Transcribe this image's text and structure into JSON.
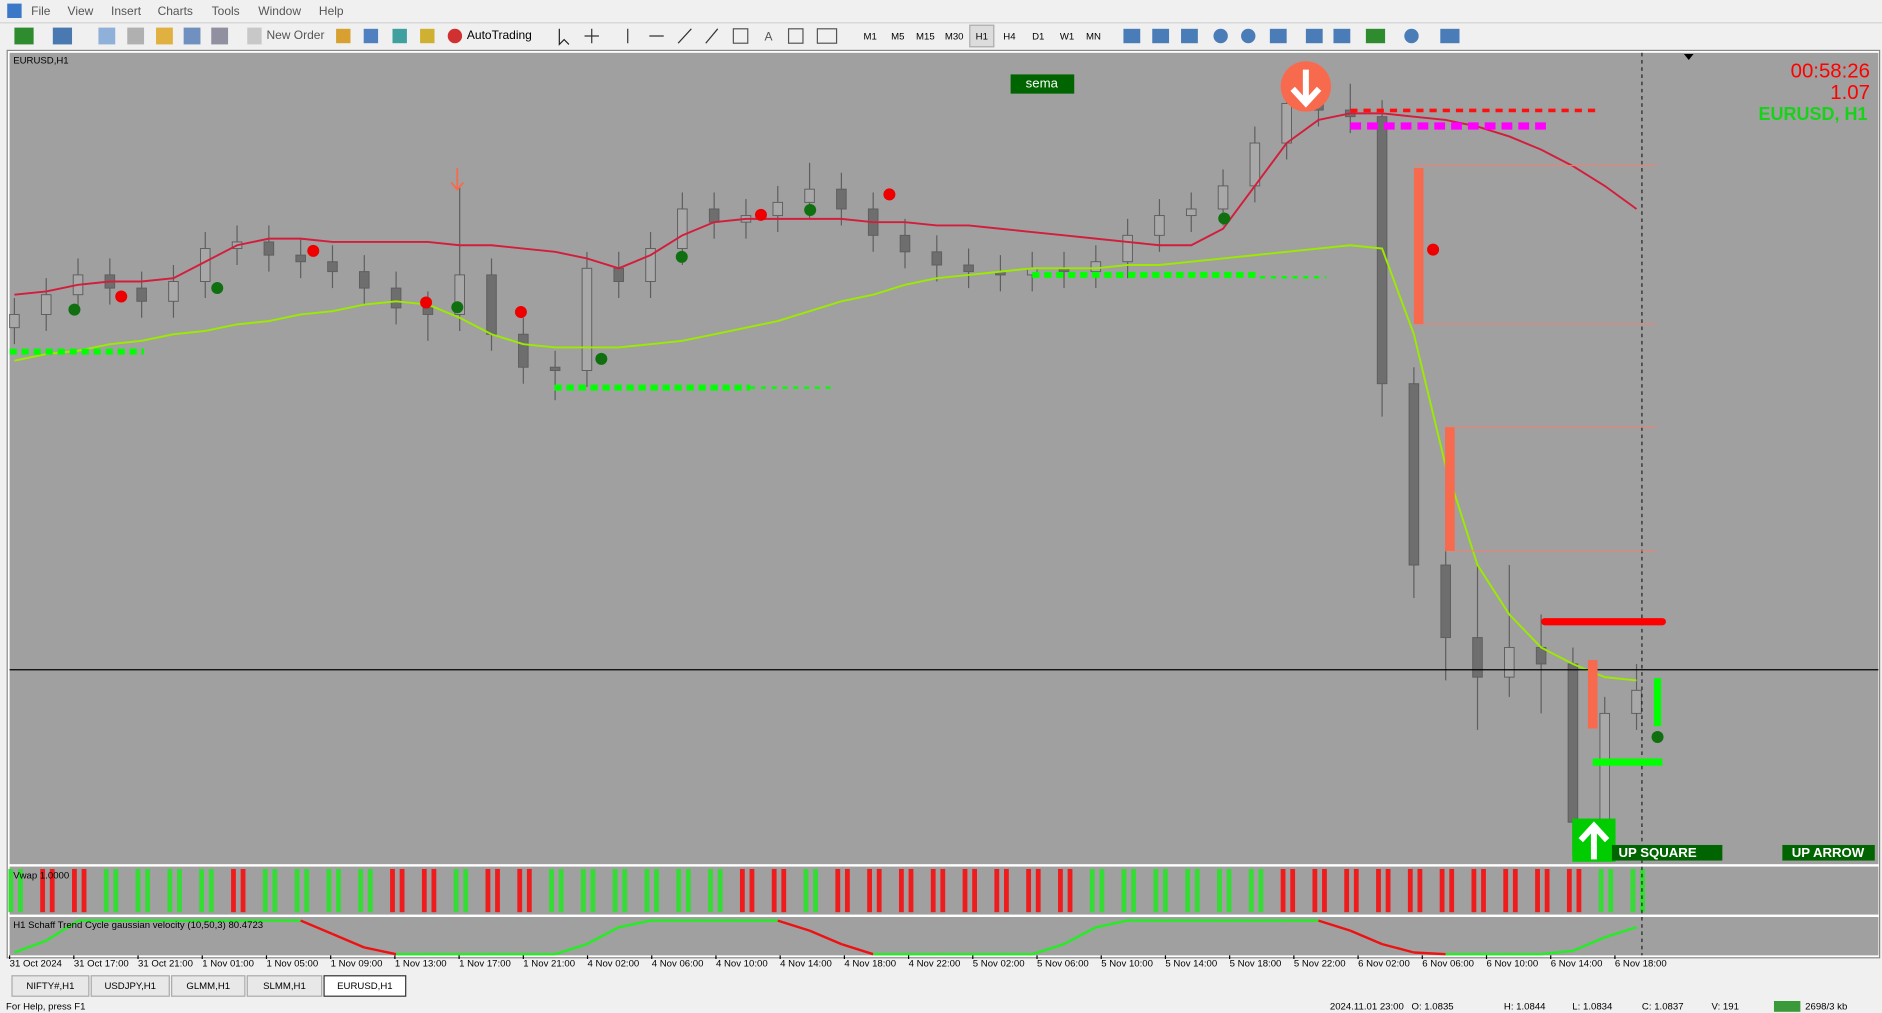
{
  "menu": [
    "File",
    "View",
    "Insert",
    "Charts",
    "Tools",
    "Window",
    "Help"
  ],
  "toolbar": {
    "new_order": "New Order",
    "auto_trading": "AutoTrading",
    "timeframes": [
      "M1",
      "M5",
      "M15",
      "M30",
      "H1",
      "H4",
      "D1",
      "W1",
      "MN"
    ]
  },
  "chart": {
    "type": "candlestick",
    "symbol_label": "EURUSD,H1",
    "sema_label": "sema",
    "countdown": "00:58:26",
    "price_label": "1.07",
    "symbol_watermark": "EURUSD, H1",
    "up_square_label": "UP SQUARE",
    "up_arrow_label": "UP ARROW",
    "ylim": [
      1.07,
      1.0945
    ],
    "x_labels": [
      "31 Oct 2024",
      "31 Oct 17:00",
      "31 Oct 21:00",
      "1 Nov 01:00",
      "1 Nov 05:00",
      "1 Nov 09:00",
      "1 Nov 13:00",
      "1 Nov 17:00",
      "1 Nov 21:00",
      "4 Nov 02:00",
      "4 Nov 06:00",
      "4 Nov 10:00",
      "4 Nov 14:00",
      "4 Nov 18:00",
      "4 Nov 22:00",
      "5 Nov 02:00",
      "5 Nov 06:00",
      "5 Nov 10:00",
      "5 Nov 14:00",
      "5 Nov 18:00",
      "5 Nov 22:00",
      "6 Nov 02:00",
      "6 Nov 06:00",
      "6 Nov 10:00",
      "6 Nov 14:00",
      "6 Nov 18:00"
    ],
    "candles": {
      "open": [
        1.0862,
        1.0866,
        1.0872,
        1.0878,
        1.0874,
        1.087,
        1.0876,
        1.0886,
        1.0888,
        1.0884,
        1.0882,
        1.0879,
        1.0874,
        1.0868,
        1.0866,
        1.0878,
        1.086,
        1.085,
        1.0849,
        1.088,
        1.0876,
        1.0886,
        1.0898,
        1.0894,
        1.0896,
        1.09,
        1.0904,
        1.0898,
        1.089,
        1.0885,
        1.0881,
        1.0879,
        1.0878,
        1.088,
        1.0879,
        1.0882,
        1.089,
        1.0896,
        1.0898,
        1.0905,
        1.0918,
        1.093,
        1.0928,
        1.0926,
        1.0845,
        1.079,
        1.0768,
        1.0756,
        1.0765,
        1.076,
        1.0712,
        1.0745
      ],
      "high": [
        1.0871,
        1.0877,
        1.0883,
        1.0883,
        1.0879,
        1.0881,
        1.0891,
        1.0893,
        1.0893,
        1.0889,
        1.0887,
        1.0884,
        1.0879,
        1.0873,
        1.0905,
        1.0883,
        1.0865,
        1.0855,
        1.0885,
        1.0885,
        1.0891,
        1.0903,
        1.0903,
        1.0901,
        1.0905,
        1.0912,
        1.0909,
        1.0903,
        1.0895,
        1.089,
        1.0886,
        1.0884,
        1.0885,
        1.0885,
        1.0887,
        1.0895,
        1.0901,
        1.0903,
        1.091,
        1.0923,
        1.0935,
        1.0937,
        1.0936,
        1.0931,
        1.085,
        1.0795,
        1.079,
        1.079,
        1.0775,
        1.0765,
        1.075,
        1.076
      ],
      "low": [
        1.0857,
        1.0861,
        1.0867,
        1.0869,
        1.0865,
        1.0865,
        1.0871,
        1.0881,
        1.0879,
        1.0877,
        1.0874,
        1.0869,
        1.0863,
        1.0858,
        1.0861,
        1.0855,
        1.0845,
        1.084,
        1.0844,
        1.0871,
        1.0871,
        1.0881,
        1.0889,
        1.0889,
        1.0891,
        1.0895,
        1.0893,
        1.0885,
        1.088,
        1.0876,
        1.0874,
        1.0873,
        1.0873,
        1.0874,
        1.0874,
        1.0877,
        1.0885,
        1.0891,
        1.0893,
        1.09,
        1.0913,
        1.0923,
        1.0921,
        1.0835,
        1.078,
        1.0755,
        1.074,
        1.075,
        1.0745,
        1.0702,
        1.0702,
        1.074
      ],
      "close": [
        1.0866,
        1.0872,
        1.0878,
        1.0874,
        1.087,
        1.0876,
        1.0886,
        1.0888,
        1.0884,
        1.0882,
        1.0879,
        1.0874,
        1.0868,
        1.0866,
        1.0878,
        1.086,
        1.085,
        1.0849,
        1.088,
        1.0876,
        1.0886,
        1.0898,
        1.0894,
        1.0896,
        1.09,
        1.0904,
        1.0898,
        1.089,
        1.0885,
        1.0881,
        1.0879,
        1.0878,
        1.088,
        1.0879,
        1.0882,
        1.089,
        1.0896,
        1.0898,
        1.0905,
        1.0918,
        1.093,
        1.0928,
        1.0926,
        1.0845,
        1.079,
        1.0768,
        1.0756,
        1.0765,
        1.076,
        1.0712,
        1.0745,
        1.0752
      ]
    },
    "ma_red": {
      "color": "#d21e3c",
      "values": [
        1.0872,
        1.0873,
        1.0875,
        1.0876,
        1.0876,
        1.0877,
        1.0882,
        1.0887,
        1.0889,
        1.0889,
        1.0888,
        1.0888,
        1.0888,
        1.0888,
        1.0887,
        1.0887,
        1.0886,
        1.0885,
        1.0883,
        1.088,
        1.0884,
        1.089,
        1.0894,
        1.0895,
        1.0895,
        1.0895,
        1.0895,
        1.0894,
        1.0894,
        1.0893,
        1.0893,
        1.0892,
        1.0891,
        1.089,
        1.0889,
        1.0888,
        1.0887,
        1.0887,
        1.0892,
        1.0905,
        1.0918,
        1.0925,
        1.0927,
        1.0927,
        1.0926,
        1.0925,
        1.0923,
        1.092,
        1.0916,
        1.0911,
        1.0905,
        1.0898
      ]
    },
    "ma_green": {
      "color": "#9bea00",
      "values": [
        1.0852,
        1.0854,
        1.0855,
        1.0857,
        1.0858,
        1.086,
        1.0861,
        1.0863,
        1.0864,
        1.0866,
        1.0867,
        1.0869,
        1.087,
        1.0869,
        1.0865,
        1.086,
        1.0857,
        1.0856,
        1.0856,
        1.0856,
        1.0857,
        1.0858,
        1.086,
        1.0862,
        1.0864,
        1.0867,
        1.087,
        1.0872,
        1.0875,
        1.0877,
        1.0878,
        1.0879,
        1.088,
        1.088,
        1.088,
        1.0881,
        1.0881,
        1.0882,
        1.0883,
        1.0884,
        1.0885,
        1.0886,
        1.0887,
        1.0886,
        1.086,
        1.082,
        1.079,
        1.0775,
        1.0765,
        1.076,
        1.0756,
        1.0755
      ]
    },
    "vwap": {
      "label": "Vwap 1.0000",
      "signals": [
        1,
        -1,
        -1,
        1,
        1,
        1,
        1,
        -1,
        1,
        1,
        1,
        1,
        -1,
        -1,
        1,
        -1,
        -1,
        1,
        1,
        1,
        1,
        1,
        1,
        -1,
        -1,
        1,
        -1,
        -1,
        -1,
        -1,
        -1,
        -1,
        -1,
        -1,
        1,
        1,
        1,
        1,
        1,
        1,
        -1,
        -1,
        -1,
        -1,
        -1,
        -1,
        -1,
        -1,
        -1,
        -1,
        1,
        1
      ]
    },
    "schaff": {
      "label": "H1 Schaff Trend Cycle gaussian velocity (10,50,3) 80.4723",
      "ylim": [
        0,
        100
      ],
      "values": [
        5,
        40,
        100,
        100,
        100,
        100,
        100,
        100,
        100,
        100,
        60,
        20,
        0,
        0,
        0,
        0,
        0,
        0,
        30,
        80,
        100,
        100,
        100,
        100,
        100,
        70,
        30,
        0,
        0,
        0,
        0,
        0,
        0,
        30,
        80,
        100,
        100,
        100,
        100,
        100,
        100,
        100,
        70,
        30,
        5,
        0,
        0,
        0,
        0,
        10,
        50,
        80.4723
      ]
    }
  },
  "tabs": [
    "NIFTY#,H1",
    "USDJPY,H1",
    "GLMM,H1",
    "SLMM,H1",
    "EURUSD,H1"
  ],
  "status": {
    "help": "For Help, press F1",
    "time": "2024.11.01 23:00",
    "open": "O: 1.0835",
    "high": "H: 1.0844",
    "low": "L: 1.0834",
    "close": "C: 1.0837",
    "volume": "V: 191",
    "traffic": "2698/3 kb"
  }
}
